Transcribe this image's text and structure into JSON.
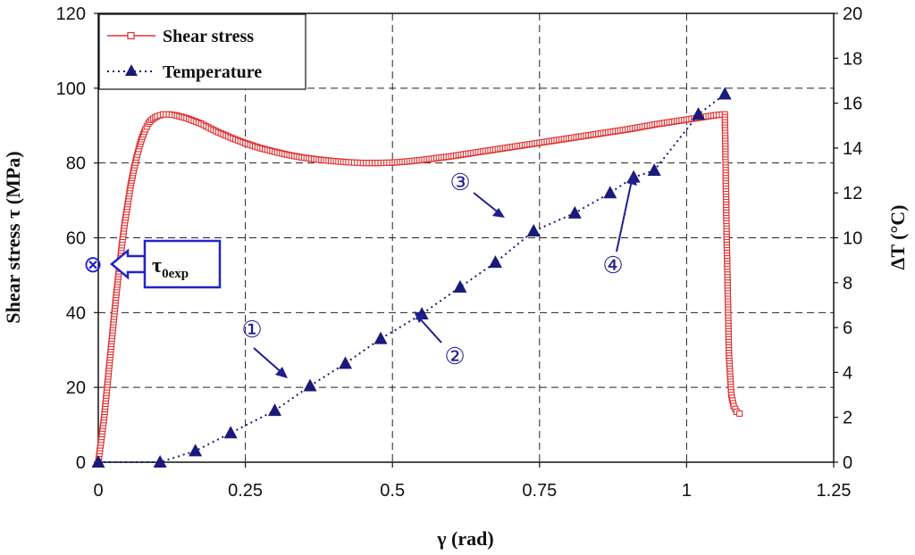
{
  "chart_data": {
    "type": "line",
    "xlabel": "γ (rad)",
    "ylabel": "Shear stress τ (MPa)",
    "y2label": "ΔT (°C)",
    "xlim": [
      0,
      1.25
    ],
    "ylim": [
      0,
      120
    ],
    "y2lim": [
      0,
      20
    ],
    "xticks": [
      "0",
      "0.25",
      "0.5",
      "0.75",
      "1",
      "1.25"
    ],
    "yticks": [
      "0",
      "20",
      "40",
      "60",
      "80",
      "100",
      "120"
    ],
    "y2ticks": [
      "0",
      "2",
      "4",
      "6",
      "8",
      "10",
      "12",
      "14",
      "16",
      "18",
      "20"
    ],
    "grid": true,
    "legend_position": "top-left",
    "series": [
      {
        "name": "Shear stress",
        "axis": "left",
        "color": "#e03030",
        "marker": "square",
        "points": [
          [
            0,
            0
          ],
          [
            0.005,
            6
          ],
          [
            0.01,
            12
          ],
          [
            0.015,
            20
          ],
          [
            0.02,
            28
          ],
          [
            0.025,
            36
          ],
          [
            0.03,
            44
          ],
          [
            0.035,
            51
          ],
          [
            0.04,
            58
          ],
          [
            0.045,
            64
          ],
          [
            0.05,
            69
          ],
          [
            0.055,
            74
          ],
          [
            0.06,
            78
          ],
          [
            0.065,
            81.5
          ],
          [
            0.07,
            84.5
          ],
          [
            0.075,
            87
          ],
          [
            0.08,
            89
          ],
          [
            0.085,
            90.5
          ],
          [
            0.09,
            91.5
          ],
          [
            0.1,
            92.5
          ],
          [
            0.11,
            93
          ],
          [
            0.12,
            93
          ],
          [
            0.13,
            92.8
          ],
          [
            0.15,
            92
          ],
          [
            0.175,
            90.5
          ],
          [
            0.2,
            88.5
          ],
          [
            0.225,
            86.8
          ],
          [
            0.25,
            85.3
          ],
          [
            0.275,
            84
          ],
          [
            0.3,
            83
          ],
          [
            0.325,
            82.1
          ],
          [
            0.35,
            81.4
          ],
          [
            0.375,
            80.9
          ],
          [
            0.4,
            80.5
          ],
          [
            0.425,
            80.2
          ],
          [
            0.45,
            80
          ],
          [
            0.475,
            80
          ],
          [
            0.5,
            80.1
          ],
          [
            0.525,
            80.4
          ],
          [
            0.55,
            80.8
          ],
          [
            0.575,
            81.3
          ],
          [
            0.6,
            81.8
          ],
          [
            0.625,
            82.4
          ],
          [
            0.65,
            83
          ],
          [
            0.675,
            83.6
          ],
          [
            0.7,
            84.2
          ],
          [
            0.725,
            84.8
          ],
          [
            0.75,
            85.4
          ],
          [
            0.775,
            86
          ],
          [
            0.8,
            86.6
          ],
          [
            0.825,
            87.2
          ],
          [
            0.85,
            87.8
          ],
          [
            0.875,
            88.4
          ],
          [
            0.9,
            89
          ],
          [
            0.925,
            89.7
          ],
          [
            0.95,
            90.4
          ],
          [
            0.975,
            91
          ],
          [
            1.0,
            91.6
          ],
          [
            1.025,
            92.2
          ],
          [
            1.05,
            92.8
          ],
          [
            1.065,
            93
          ],
          [
            1.068,
            61
          ],
          [
            1.072,
            28.5
          ],
          [
            1.076,
            18
          ],
          [
            1.08,
            15
          ],
          [
            1.085,
            13.5
          ],
          [
            1.09,
            13
          ]
        ]
      },
      {
        "name": "Temperature",
        "axis": "right",
        "color": "#1a1a7a",
        "marker": "triangle",
        "points": [
          [
            0,
            0
          ],
          [
            0.105,
            0
          ],
          [
            0.165,
            0.5
          ],
          [
            0.225,
            1.3
          ],
          [
            0.3,
            2.3
          ],
          [
            0.36,
            3.4
          ],
          [
            0.42,
            4.4
          ],
          [
            0.48,
            5.5
          ],
          [
            0.55,
            6.6
          ],
          [
            0.615,
            7.8
          ],
          [
            0.675,
            8.9
          ],
          [
            0.74,
            10.3
          ],
          [
            0.81,
            11.1
          ],
          [
            0.87,
            12
          ],
          [
            0.91,
            12.7
          ],
          [
            0.945,
            13
          ],
          [
            1.02,
            15.5
          ],
          [
            1.065,
            16.4
          ]
        ]
      }
    ],
    "annotations": {
      "tau_label": "τ",
      "tau_subscript": "0exp",
      "tau_value": 53,
      "tau_marker": "⊗",
      "labels": [
        "①",
        "②",
        "③",
        "④"
      ]
    }
  }
}
